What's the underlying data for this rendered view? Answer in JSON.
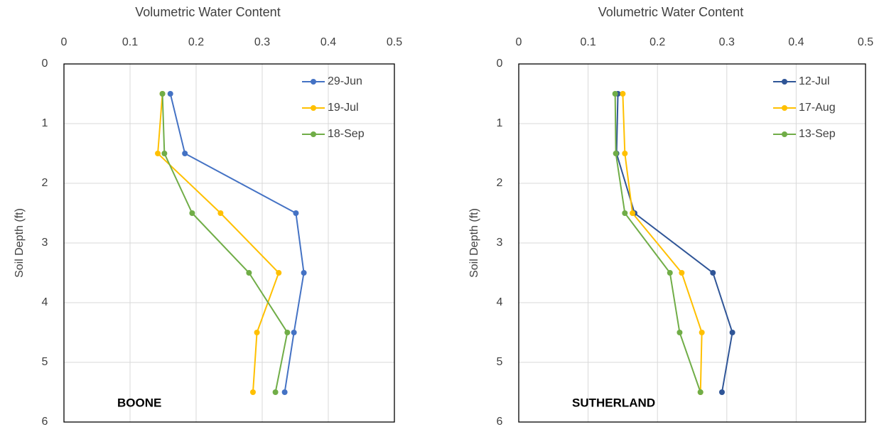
{
  "chart_data": [
    {
      "type": "line",
      "title": "Volumetric Water Content",
      "y_label": "Soil Depth (ft)",
      "annotation": "BOONE",
      "xlim": [
        0,
        0.5
      ],
      "xticks": [
        0,
        0.1,
        0.2,
        0.3,
        0.4,
        0.5
      ],
      "x_axis_position": "top",
      "ylim": [
        0,
        6
      ],
      "yticks": [
        0,
        1,
        2,
        3,
        4,
        5,
        6
      ],
      "y_inverted": true,
      "grid": true,
      "legend": "upper-right",
      "y": [
        0.5,
        1.5,
        2.5,
        3.5,
        4.5,
        5.5
      ],
      "series": [
        {
          "name": "29-Jun",
          "color": "#4472c4",
          "x": [
            0.161,
            0.183,
            0.351,
            0.363,
            0.348,
            0.334
          ]
        },
        {
          "name": "19-Jul",
          "color": "#ffc000",
          "x": [
            0.149,
            0.142,
            0.237,
            0.325,
            0.292,
            0.286
          ]
        },
        {
          "name": "18-Sep",
          "color": "#70ad47",
          "x": [
            0.149,
            0.152,
            0.194,
            0.28,
            0.338,
            0.32
          ]
        }
      ]
    },
    {
      "type": "line",
      "title": "Volumetric Water Content",
      "y_label": "Soil Depth (ft)",
      "annotation": "SUTHERLAND",
      "xlim": [
        0,
        0.5
      ],
      "xticks": [
        0,
        0.1,
        0.2,
        0.3,
        0.4,
        0.5
      ],
      "x_axis_position": "top",
      "ylim": [
        0,
        6
      ],
      "yticks": [
        0,
        1,
        2,
        3,
        4,
        5,
        6
      ],
      "y_inverted": true,
      "grid": true,
      "legend": "upper-right",
      "y": [
        0.5,
        1.5,
        2.5,
        3.5,
        4.5,
        5.5
      ],
      "series": [
        {
          "name": "12-Jul",
          "color": "#2f5597",
          "x": [
            0.143,
            0.141,
            0.167,
            0.28,
            0.308,
            0.293
          ]
        },
        {
          "name": "17-Aug",
          "color": "#ffc000",
          "x": [
            0.15,
            0.153,
            0.164,
            0.235,
            0.264,
            0.262
          ]
        },
        {
          "name": "13-Sep",
          "color": "#70ad47",
          "x": [
            0.139,
            0.14,
            0.153,
            0.218,
            0.232,
            0.262
          ]
        }
      ]
    }
  ]
}
